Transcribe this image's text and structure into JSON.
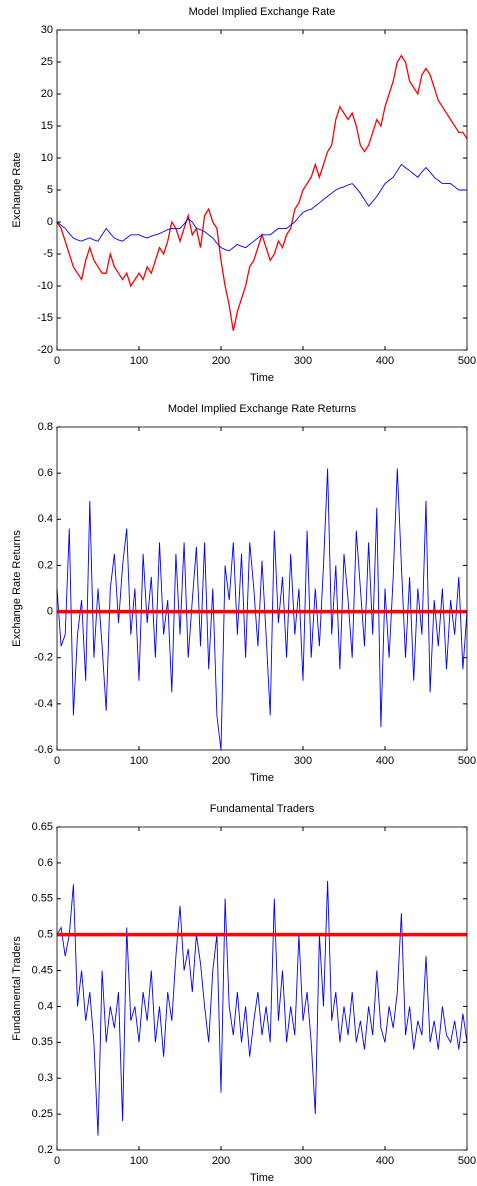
{
  "chart_data": [
    {
      "type": "line",
      "title": "Model Implied Exchange Rate",
      "xlabel": "Time",
      "ylabel": "Exchange Rate",
      "xlim": [
        0,
        500
      ],
      "xticks": [
        0,
        100,
        200,
        300,
        400,
        500
      ],
      "ylim": [
        -20,
        30
      ],
      "yticks": [
        -20,
        -15,
        -10,
        -5,
        0,
        5,
        10,
        15,
        20,
        25,
        30
      ],
      "x": [
        0,
        5,
        10,
        15,
        20,
        25,
        30,
        35,
        40,
        45,
        50,
        55,
        60,
        65,
        70,
        75,
        80,
        85,
        90,
        95,
        100,
        105,
        110,
        115,
        120,
        125,
        130,
        135,
        140,
        145,
        150,
        155,
        160,
        165,
        170,
        175,
        180,
        185,
        190,
        195,
        200,
        205,
        210,
        215,
        220,
        225,
        230,
        235,
        240,
        245,
        250,
        255,
        260,
        265,
        270,
        275,
        280,
        285,
        290,
        295,
        300,
        305,
        310,
        315,
        320,
        325,
        330,
        335,
        340,
        345,
        350,
        355,
        360,
        365,
        370,
        375,
        380,
        385,
        390,
        395,
        400,
        405,
        410,
        415,
        420,
        425,
        430,
        435,
        440,
        445,
        450,
        455,
        460,
        465,
        470,
        475,
        480,
        485,
        490,
        495,
        500
      ],
      "series": [
        {
          "color": "#ff0000",
          "values": [
            0,
            -1,
            -3,
            -5,
            -7,
            -8,
            -9,
            -6,
            -4,
            -6,
            -7,
            -8,
            -8,
            -5,
            -7,
            -8,
            -9,
            -8,
            -10,
            -9,
            -8,
            -9,
            -7,
            -8,
            -6,
            -4,
            -5,
            -3,
            0,
            -1,
            -3,
            -1,
            1,
            -2,
            -1,
            -4,
            1,
            2,
            0,
            -1,
            -6,
            -10,
            -13,
            -17,
            -14,
            -12,
            -10,
            -7,
            -6,
            -4,
            -2,
            -4,
            -6,
            -5,
            -3,
            -4,
            -2,
            -1,
            2,
            3,
            5,
            6,
            7,
            9,
            7,
            9,
            11,
            12,
            16,
            18,
            17,
            16,
            17,
            15,
            12,
            11,
            12,
            14,
            16,
            15,
            18,
            20,
            22,
            25,
            26,
            25,
            22,
            21,
            20,
            23,
            24,
            23,
            21,
            19,
            18,
            17,
            16,
            15,
            14,
            14,
            13
          ]
        },
        {
          "color": "#0000ff",
          "values": [
            0,
            -0.5,
            -1,
            -1.8,
            -2.5,
            -2.8,
            -3,
            -2.7,
            -2.5,
            -2.8,
            -3,
            -2,
            -1,
            -1.8,
            -2.5,
            -2.8,
            -3,
            -2.5,
            -2,
            -2,
            -2,
            -2.3,
            -2.5,
            -2.2,
            -2,
            -1.8,
            -1.5,
            -1.2,
            -1,
            -1,
            -1,
            -0.3,
            0.5,
            0,
            -1,
            -1.2,
            -1.5,
            -2,
            -2.5,
            -3.3,
            -4,
            -4.3,
            -4.5,
            -4,
            -3.5,
            -3.8,
            -4,
            -3.5,
            -3,
            -2.5,
            -2,
            -2,
            -2,
            -1.5,
            -1,
            -1,
            -1,
            -0.5,
            0,
            0.8,
            1.5,
            1.8,
            2,
            2.5,
            3,
            3.5,
            4,
            4.5,
            5,
            5.3,
            5.5,
            5.8,
            6,
            5.3,
            4.5,
            3.5,
            2.5,
            3.2,
            4,
            5,
            6,
            6.5,
            7,
            8,
            9,
            8.5,
            8,
            7.5,
            7,
            7.8,
            8.5,
            7.8,
            7,
            6.5,
            6,
            6,
            6,
            5.5,
            5,
            5,
            5
          ]
        }
      ]
    },
    {
      "type": "line",
      "title": "Model Implied Exchange Rate Returns",
      "xlabel": "Time",
      "ylabel": "Exchange Rate Returns",
      "xlim": [
        0,
        500
      ],
      "xticks": [
        0,
        100,
        200,
        300,
        400,
        500
      ],
      "ylim": [
        -0.6,
        0.8
      ],
      "yticks": [
        -0.6,
        -0.4,
        -0.2,
        0,
        0.2,
        0.4,
        0.6,
        0.8
      ],
      "x": [
        0,
        5,
        10,
        15,
        20,
        25,
        30,
        35,
        40,
        45,
        50,
        55,
        60,
        65,
        70,
        75,
        80,
        85,
        90,
        95,
        100,
        105,
        110,
        115,
        120,
        125,
        130,
        135,
        140,
        145,
        150,
        155,
        160,
        165,
        170,
        175,
        180,
        185,
        190,
        195,
        200,
        205,
        210,
        215,
        220,
        225,
        230,
        235,
        240,
        245,
        250,
        255,
        260,
        265,
        270,
        275,
        280,
        285,
        290,
        295,
        300,
        305,
        310,
        315,
        320,
        325,
        330,
        335,
        340,
        345,
        350,
        355,
        360,
        365,
        370,
        375,
        380,
        385,
        390,
        395,
        400,
        405,
        410,
        415,
        420,
        425,
        430,
        435,
        440,
        445,
        450,
        455,
        460,
        465,
        470,
        475,
        480,
        485,
        490,
        495,
        500
      ],
      "series": [
        {
          "color": "#0000ff",
          "values": [
            0.1,
            -0.15,
            -0.1,
            0.36,
            -0.45,
            -0.1,
            0.05,
            -0.3,
            0.48,
            -0.2,
            0.1,
            -0.15,
            -0.43,
            0.1,
            0.25,
            -0.05,
            0.2,
            0.36,
            -0.1,
            0.1,
            -0.3,
            0.25,
            -0.05,
            0.15,
            -0.2,
            0.3,
            -0.1,
            0.05,
            -0.35,
            0.25,
            -0.1,
            0.3,
            -0.2,
            0.05,
            0.28,
            -0.15,
            0.3,
            -0.25,
            0.1,
            -0.45,
            -0.6,
            0.2,
            0.05,
            0.3,
            -0.1,
            0.25,
            -0.2,
            0.3,
            0.1,
            -0.15,
            0.22,
            -0.1,
            -0.45,
            0.35,
            -0.05,
            0.15,
            -0.2,
            0.25,
            -0.1,
            0.1,
            -0.3,
            0.35,
            -0.2,
            0.1,
            -0.15,
            0.2,
            0.62,
            -0.1,
            0.2,
            -0.25,
            0.25,
            0.05,
            -0.2,
            0.35,
            0.1,
            -0.15,
            0.3,
            -0.1,
            0.45,
            -0.5,
            0.1,
            -0.2,
            0.15,
            0.62,
            0.2,
            -0.2,
            0.15,
            -0.3,
            0.1,
            -0.1,
            0.48,
            -0.35,
            0.05,
            -0.15,
            0.1,
            -0.25,
            0.05,
            -0.1,
            0.15,
            -0.25,
            0
          ]
        }
      ],
      "reference_line": {
        "value": 0,
        "color": "#ff0000"
      }
    },
    {
      "type": "line",
      "title": "Fundamental Traders",
      "xlabel": "Time",
      "ylabel": "Fundamental Traders",
      "xlim": [
        0,
        500
      ],
      "xticks": [
        0,
        100,
        200,
        300,
        400,
        500
      ],
      "ylim": [
        0.2,
        0.65
      ],
      "yticks": [
        0.2,
        0.25,
        0.3,
        0.35,
        0.4,
        0.45,
        0.5,
        0.55,
        0.6,
        0.65
      ],
      "x": [
        0,
        5,
        10,
        15,
        20,
        25,
        30,
        35,
        40,
        45,
        50,
        55,
        60,
        65,
        70,
        75,
        80,
        85,
        90,
        95,
        100,
        105,
        110,
        115,
        120,
        125,
        130,
        135,
        140,
        145,
        150,
        155,
        160,
        165,
        170,
        175,
        180,
        185,
        190,
        195,
        200,
        205,
        210,
        215,
        220,
        225,
        230,
        235,
        240,
        245,
        250,
        255,
        260,
        265,
        270,
        275,
        280,
        285,
        290,
        295,
        300,
        305,
        310,
        315,
        320,
        325,
        330,
        335,
        340,
        345,
        350,
        355,
        360,
        365,
        370,
        375,
        380,
        385,
        390,
        395,
        400,
        405,
        410,
        415,
        420,
        425,
        430,
        435,
        440,
        445,
        450,
        455,
        460,
        465,
        470,
        475,
        480,
        485,
        490,
        495,
        500
      ],
      "series": [
        {
          "color": "#0000ff",
          "values": [
            0.5,
            0.51,
            0.47,
            0.5,
            0.57,
            0.4,
            0.45,
            0.38,
            0.42,
            0.35,
            0.22,
            0.45,
            0.35,
            0.4,
            0.37,
            0.42,
            0.24,
            0.51,
            0.38,
            0.4,
            0.35,
            0.42,
            0.38,
            0.45,
            0.35,
            0.4,
            0.33,
            0.42,
            0.38,
            0.47,
            0.54,
            0.45,
            0.48,
            0.42,
            0.5,
            0.46,
            0.4,
            0.35,
            0.45,
            0.5,
            0.28,
            0.55,
            0.4,
            0.36,
            0.42,
            0.35,
            0.4,
            0.33,
            0.38,
            0.42,
            0.36,
            0.4,
            0.35,
            0.55,
            0.38,
            0.45,
            0.35,
            0.4,
            0.36,
            0.5,
            0.38,
            0.42,
            0.35,
            0.25,
            0.5,
            0.4,
            0.575,
            0.38,
            0.42,
            0.35,
            0.4,
            0.36,
            0.42,
            0.35,
            0.38,
            0.34,
            0.4,
            0.36,
            0.45,
            0.37,
            0.35,
            0.4,
            0.37,
            0.42,
            0.53,
            0.36,
            0.4,
            0.34,
            0.38,
            0.36,
            0.47,
            0.35,
            0.38,
            0.34,
            0.4,
            0.36,
            0.35,
            0.38,
            0.34,
            0.39,
            0.35
          ]
        }
      ],
      "reference_line": {
        "value": 0.5,
        "color": "#ff0000"
      }
    }
  ]
}
